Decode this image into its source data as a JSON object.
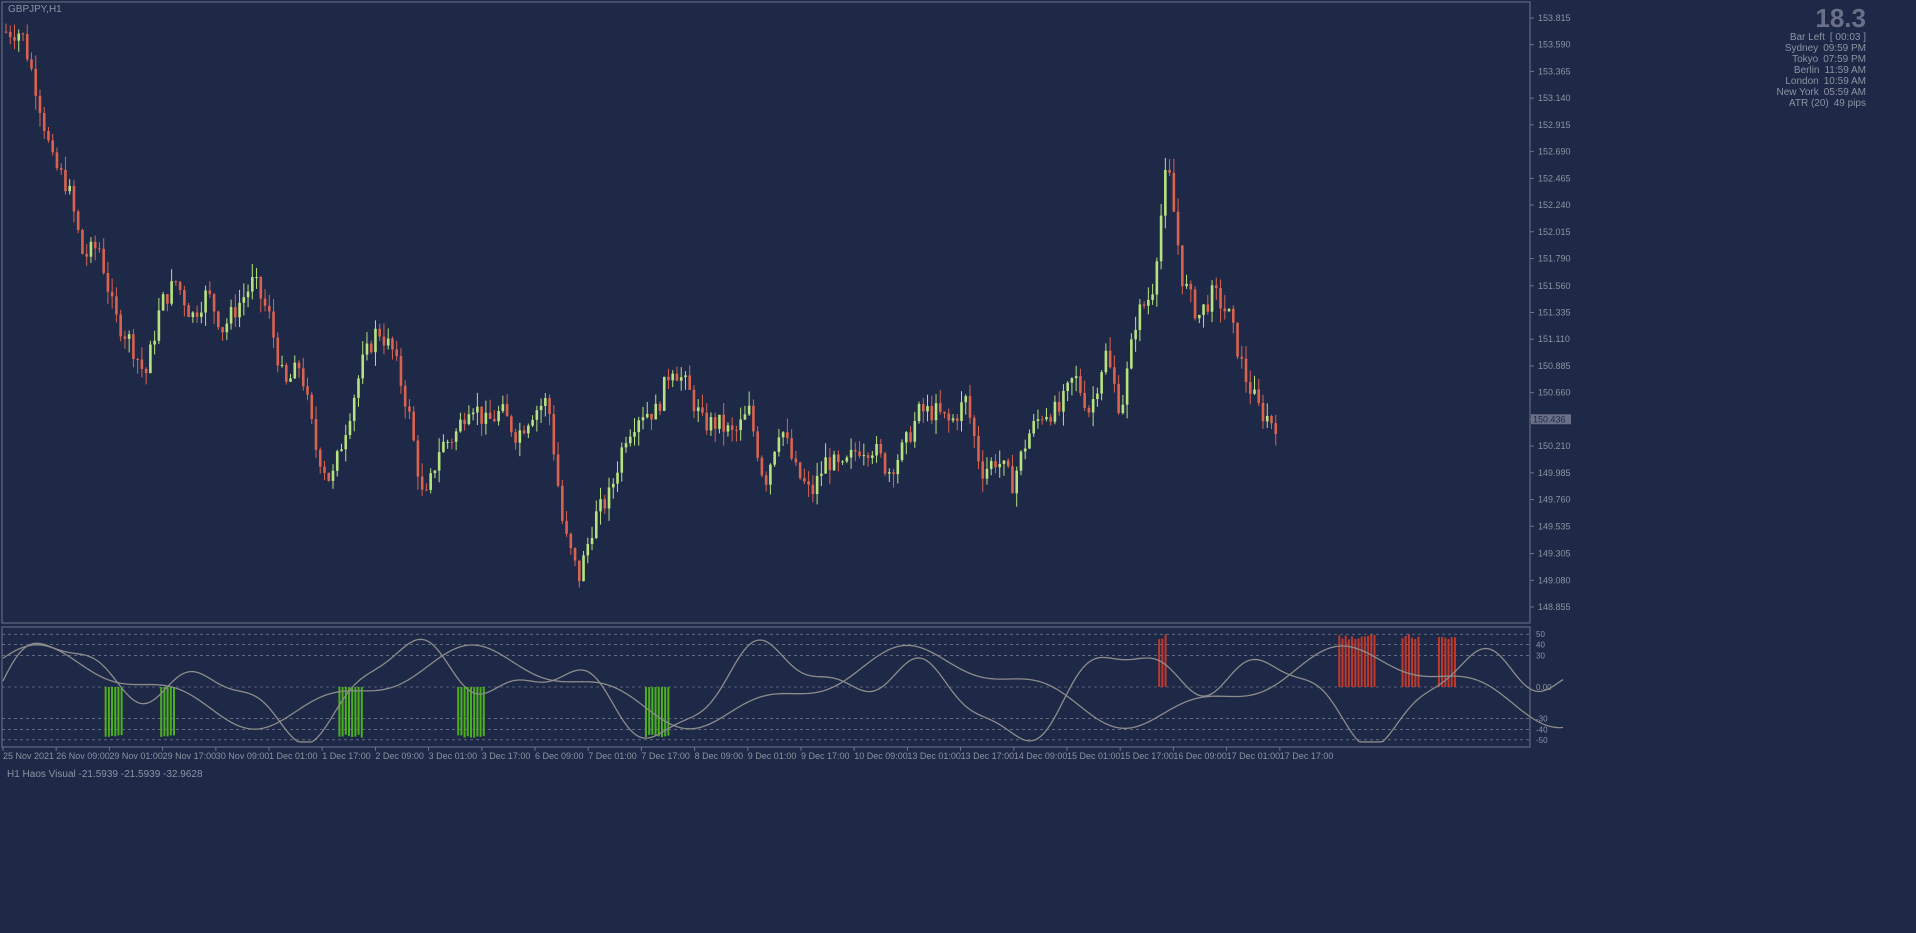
{
  "symbol": "GBPJPY,H1",
  "indicator_label": "H1 Haos Visual -21.5939 -21.5939 -32.9628",
  "info": {
    "big_value": "18.3",
    "rows": [
      {
        "k": "Bar Left",
        "v": "[ 00:03 ]"
      },
      {
        "k": "Sydney",
        "v": "09:59 PM"
      },
      {
        "k": "Tokyo",
        "v": "07:59 PM"
      },
      {
        "k": "Berlin",
        "v": "11:59 AM"
      },
      {
        "k": "London",
        "v": "10:59 AM"
      },
      {
        "k": "New York",
        "v": "05:59 AM"
      },
      {
        "k": "ATR (20)",
        "v": "49 pips"
      }
    ]
  },
  "colors": {
    "bg": "#1e2847",
    "bull": "#b6e37f",
    "bear": "#d9634f",
    "grid": "#8a90a2",
    "osc": "#8c8c8c",
    "hist_up": "#4caf1c",
    "hist_down": "#c0392b"
  },
  "chart_data": {
    "type": "candlestick",
    "price_axis_ticks": [
      "153.815",
      "153.590",
      "153.365",
      "153.140",
      "152.915",
      "152.690",
      "152.465",
      "152.240",
      "152.015",
      "151.790",
      "151.560",
      "151.335",
      "151.110",
      "150.885",
      "150.660",
      "150.435",
      "150.210",
      "149.985",
      "149.760",
      "149.535",
      "149.305",
      "149.080",
      "148.855"
    ],
    "current_price": "150.436",
    "time_labels": [
      "25 Nov 2021",
      "26 Nov 09:00",
      "29 Nov 01:00",
      "29 Nov 17:00",
      "30 Nov 09:00",
      "1 Dec 01:00",
      "1 Dec 17:00",
      "2 Dec 09:00",
      "3 Dec 01:00",
      "3 Dec 17:00",
      "6 Dec 09:00",
      "7 Dec 01:00",
      "7 Dec 17:00",
      "8 Dec 09:00",
      "9 Dec 01:00",
      "9 Dec 17:00",
      "10 Dec 09:00",
      "13 Dec 01:00",
      "13 Dec 17:00",
      "14 Dec 09:00",
      "15 Dec 01:00",
      "15 Dec 17:00",
      "16 Dec 09:00",
      "17 Dec 01:00",
      "17 Dec 17:00"
    ],
    "close_path": [
      153.7,
      153.7,
      153.2,
      152.6,
      152.4,
      151.8,
      151.9,
      151.3,
      151.1,
      150.8,
      151.4,
      151.6,
      151.3,
      151.5,
      151.2,
      151.4,
      151.6,
      151.3,
      150.7,
      150.9,
      150.2,
      149.9,
      150.4,
      150.9,
      151.2,
      151.0,
      150.5,
      149.7,
      150.2,
      150.3,
      150.6,
      150.4,
      150.5,
      150.3,
      150.5,
      150.6,
      149.5,
      149.1,
      149.6,
      149.8,
      150.3,
      150.5,
      150.5,
      150.9,
      150.7,
      150.4,
      150.4,
      150.3,
      150.5,
      149.9,
      150.4,
      150.0,
      149.8,
      150.1,
      150.0,
      150.2,
      150.2,
      150.0,
      150.2,
      150.5,
      150.5,
      150.4,
      150.6,
      150.0,
      150.1,
      149.9,
      150.3,
      150.5,
      150.5,
      150.8,
      150.5,
      151.0,
      150.5,
      151.3,
      151.5,
      152.6,
      151.6,
      151.3,
      151.5,
      151.3,
      150.8,
      150.5,
      150.4
    ],
    "indicator": {
      "levels": [
        "50",
        "40",
        "30",
        "0.00",
        "-30",
        "-40",
        "-50"
      ],
      "level_values": [
        50,
        40,
        30,
        0,
        -30,
        -40,
        -50
      ],
      "range": [
        -53,
        53
      ],
      "bull_zones": [
        [
          0.028,
          0.038
        ],
        [
          0.057,
          0.065
        ],
        [
          0.15,
          0.163
        ],
        [
          0.212,
          0.226
        ],
        [
          0.31,
          0.322
        ]
      ],
      "bear_zones": [
        [
          0.605,
          0.61
        ],
        [
          0.699,
          0.718
        ],
        [
          0.732,
          0.741
        ],
        [
          0.751,
          0.761
        ]
      ]
    }
  }
}
